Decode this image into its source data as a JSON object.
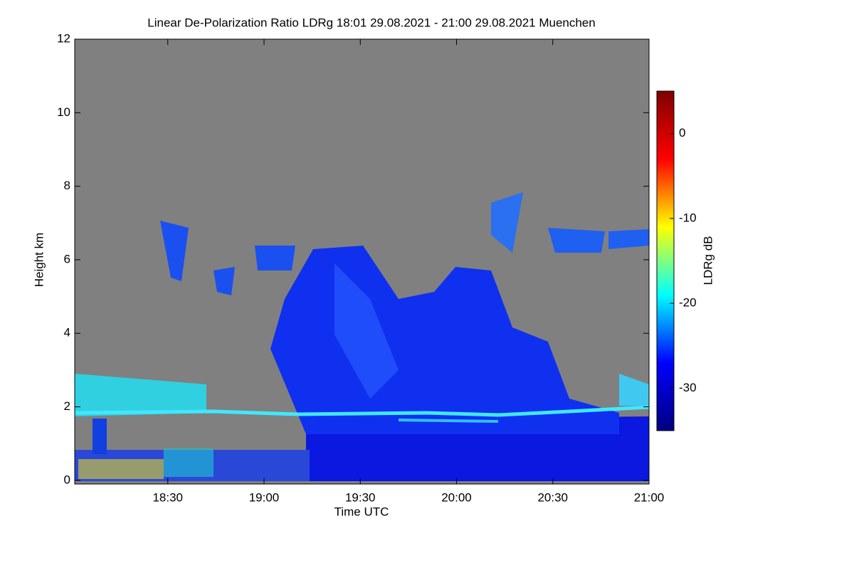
{
  "chart_data": {
    "type": "heatmap",
    "title": "Linear De-Polarization Ratio LDRg   18:01 29.08.2021 - 21:00 29.08.2021 Muenchen",
    "xlabel": "Time UTC",
    "ylabel": "Height km",
    "xlim": [
      1081,
      1260
    ],
    "xticks": [
      {
        "value": 1110,
        "label": "18:30"
      },
      {
        "value": 1140,
        "label": "19:00"
      },
      {
        "value": 1170,
        "label": "19:30"
      },
      {
        "value": 1200,
        "label": "20:00"
      },
      {
        "value": 1230,
        "label": "20:30"
      },
      {
        "value": 1260,
        "label": "21:00"
      }
    ],
    "ylim": [
      -0.1,
      12
    ],
    "yticks": [
      0,
      2,
      4,
      6,
      8,
      10,
      12
    ],
    "colorbar": {
      "label": "LDRg dB",
      "lim": [
        -35,
        5
      ],
      "ticks": [
        0,
        -10,
        -20,
        -30
      ],
      "colormap": [
        "#00007f",
        "#0000ff",
        "#00ffff",
        "#ffff00",
        "#ff0000",
        "#7f0000"
      ]
    }
  }
}
